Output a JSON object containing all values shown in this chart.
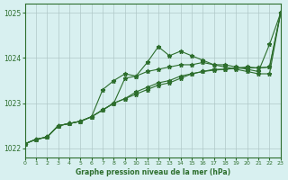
{
  "xlabel": "Graphe pression niveau de la mer (hPa)",
  "xlim": [
    0,
    23
  ],
  "ylim": [
    1021.8,
    1025.2
  ],
  "yticks": [
    1022,
    1023,
    1024,
    1025
  ],
  "xticks": [
    0,
    1,
    2,
    3,
    4,
    5,
    6,
    7,
    8,
    9,
    10,
    11,
    12,
    13,
    14,
    15,
    16,
    17,
    18,
    19,
    20,
    21,
    22,
    23
  ],
  "bg_color": "#d8f0f0",
  "grid_color": "#b0c8c8",
  "line_color": "#2d6e2d",
  "series1": {
    "x": [
      0,
      1,
      2,
      3,
      4,
      5,
      6,
      7,
      8,
      9,
      10,
      11,
      12,
      13,
      14,
      15,
      16,
      17,
      18,
      19,
      20,
      21,
      22,
      23
    ],
    "y": [
      1022.1,
      1022.2,
      1022.25,
      1022.5,
      1022.55,
      1022.6,
      1022.7,
      1022.85,
      1023.0,
      1023.55,
      1023.6,
      1023.9,
      1024.25,
      1024.05,
      1024.15,
      1024.05,
      1023.95,
      1023.85,
      1023.8,
      1023.75,
      1023.7,
      1023.65,
      1023.65,
      1025.0
    ]
  },
  "series2": {
    "x": [
      0,
      1,
      2,
      3,
      4,
      5,
      6,
      7,
      8,
      9,
      10,
      11,
      12,
      13,
      14,
      15,
      16,
      17,
      18,
      19,
      20,
      21,
      22,
      23
    ],
    "y": [
      1022.1,
      1022.2,
      1022.25,
      1022.5,
      1022.55,
      1022.6,
      1022.7,
      1023.3,
      1023.5,
      1023.65,
      1023.6,
      1023.7,
      1023.75,
      1023.8,
      1023.85,
      1023.85,
      1023.9,
      1023.85,
      1023.85,
      1023.8,
      1023.75,
      1023.7,
      1024.3,
      1025.0
    ]
  },
  "series3": {
    "x": [
      0,
      1,
      2,
      3,
      4,
      5,
      6,
      7,
      8,
      9,
      10,
      11,
      12,
      13,
      14,
      15,
      16,
      17,
      18,
      19,
      20,
      21,
      22,
      23
    ],
    "y": [
      1022.1,
      1022.2,
      1022.25,
      1022.5,
      1022.55,
      1022.6,
      1022.7,
      1022.85,
      1023.0,
      1023.1,
      1023.2,
      1023.3,
      1023.4,
      1023.45,
      1023.55,
      1023.65,
      1023.7,
      1023.75,
      1023.75,
      1023.78,
      1023.8,
      1023.78,
      1023.8,
      1025.0
    ]
  },
  "series4": {
    "x": [
      0,
      1,
      2,
      3,
      4,
      5,
      6,
      7,
      8,
      9,
      10,
      11,
      12,
      13,
      14,
      15,
      16,
      17,
      18,
      19,
      20,
      21,
      22,
      23
    ],
    "y": [
      1022.1,
      1022.2,
      1022.25,
      1022.5,
      1022.55,
      1022.6,
      1022.7,
      1022.85,
      1023.0,
      1023.1,
      1023.25,
      1023.35,
      1023.45,
      1023.5,
      1023.6,
      1023.65,
      1023.7,
      1023.73,
      1023.75,
      1023.77,
      1023.78,
      1023.78,
      1023.8,
      1025.0
    ]
  }
}
